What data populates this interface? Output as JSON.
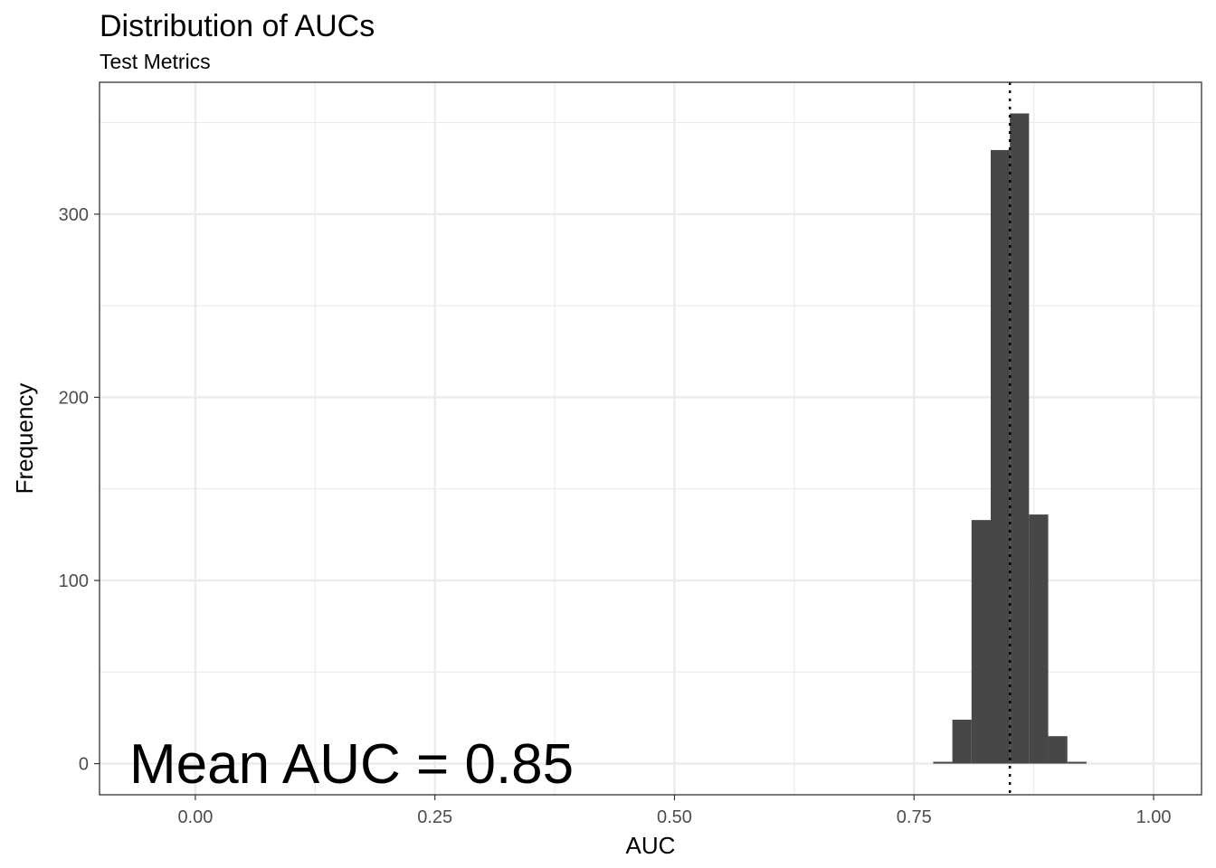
{
  "chart_data": {
    "type": "bar",
    "title": "Distribution of AUCs",
    "subtitle": "Test Metrics",
    "xlabel": "AUC",
    "ylabel": "Frequency",
    "xlim": [
      -0.1,
      1.05
    ],
    "ylim": [
      -17,
      372
    ],
    "x_ticks": [
      "0.00",
      "0.25",
      "0.50",
      "0.75",
      "1.00"
    ],
    "x_tick_values": [
      0,
      0.25,
      0.5,
      0.75,
      1.0
    ],
    "y_ticks": [
      "0",
      "100",
      "200",
      "300"
    ],
    "y_tick_values": [
      0,
      100,
      200,
      300
    ],
    "bin_width": 0.02,
    "bins": [
      {
        "x": 0.78,
        "count": 1
      },
      {
        "x": 0.8,
        "count": 24
      },
      {
        "x": 0.82,
        "count": 133
      },
      {
        "x": 0.84,
        "count": 335
      },
      {
        "x": 0.86,
        "count": 355
      },
      {
        "x": 0.88,
        "count": 136
      },
      {
        "x": 0.9,
        "count": 15
      },
      {
        "x": 0.92,
        "count": 1
      }
    ],
    "mean_line": 0.85,
    "annotation": "Mean AUC = 0.85",
    "grid": true,
    "bar_color": "#474747"
  }
}
